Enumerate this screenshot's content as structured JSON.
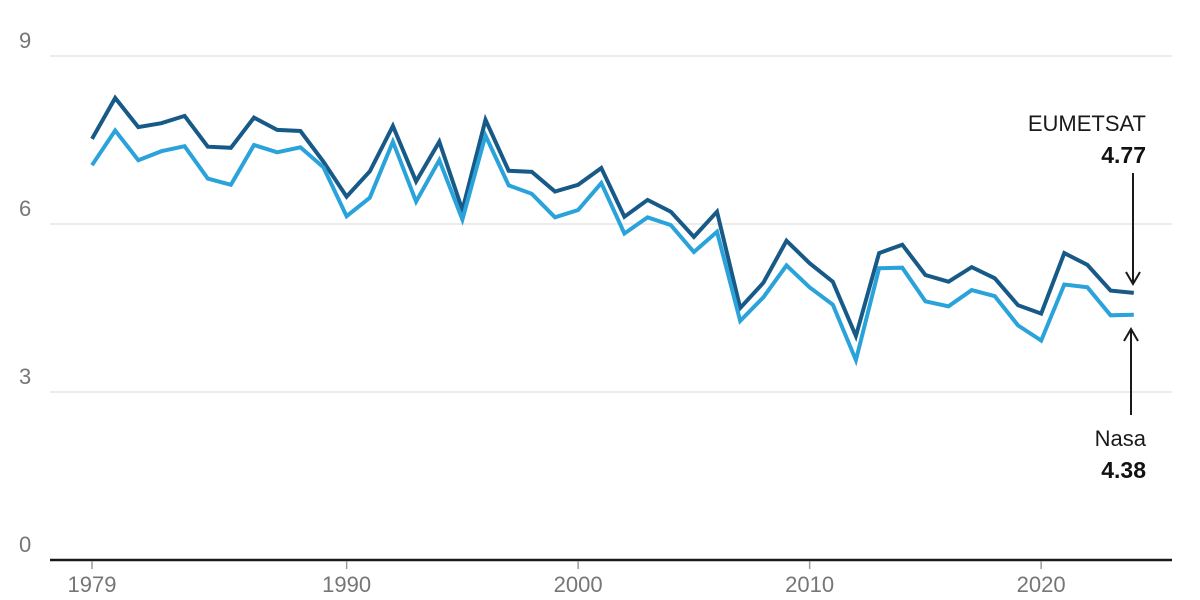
{
  "chart_data": {
    "type": "line",
    "title": "",
    "xlabel": "",
    "ylabel": "",
    "ylim": [
      0,
      9
    ],
    "xlim": [
      1979,
      2024
    ],
    "y_ticks": [
      0,
      3,
      6,
      9
    ],
    "x_ticks": [
      1979,
      1990,
      2000,
      2010,
      2020
    ],
    "grid": "horizontal-only",
    "legend_position": "end-of-line annotations (right side)",
    "x": [
      1979,
      1980,
      1981,
      1982,
      1983,
      1984,
      1985,
      1986,
      1987,
      1988,
      1989,
      1990,
      1991,
      1992,
      1993,
      1994,
      1995,
      1996,
      1997,
      1998,
      1999,
      2000,
      2001,
      2002,
      2003,
      2004,
      2005,
      2006,
      2007,
      2008,
      2009,
      2010,
      2011,
      2012,
      2013,
      2014,
      2015,
      2016,
      2017,
      2018,
      2019,
      2020,
      2021,
      2022,
      2023,
      2024
    ],
    "series": [
      {
        "name": "EUMETSAT",
        "color": "#175a87",
        "values": [
          7.52,
          8.25,
          7.73,
          7.8,
          7.93,
          7.38,
          7.36,
          7.9,
          7.68,
          7.66,
          7.11,
          6.49,
          6.94,
          7.75,
          6.76,
          7.47,
          6.25,
          7.86,
          6.95,
          6.93,
          6.58,
          6.7,
          7.0,
          6.13,
          6.43,
          6.22,
          5.77,
          6.22,
          4.5,
          4.95,
          5.7,
          5.3,
          4.97,
          4.0,
          5.48,
          5.63,
          5.09,
          4.97,
          5.23,
          5.03,
          4.55,
          4.4,
          5.48,
          5.27,
          4.81,
          4.77
        ]
      },
      {
        "name": "Nasa",
        "color": "#2aa3db",
        "values": [
          7.05,
          7.67,
          7.14,
          7.3,
          7.39,
          6.81,
          6.7,
          7.41,
          7.28,
          7.37,
          7.01,
          6.14,
          6.47,
          7.47,
          6.4,
          7.14,
          6.08,
          7.58,
          6.69,
          6.54,
          6.12,
          6.25,
          6.73,
          5.83,
          6.12,
          5.98,
          5.5,
          5.86,
          4.27,
          4.69,
          5.26,
          4.87,
          4.56,
          3.57,
          5.21,
          5.22,
          4.62,
          4.53,
          4.82,
          4.71,
          4.19,
          3.92,
          4.92,
          4.87,
          4.37,
          4.38
        ]
      }
    ],
    "annotations": [
      {
        "series": "EUMETSAT",
        "label": "EUMETSAT",
        "value": "4.77",
        "arrow_direction": "down"
      },
      {
        "series": "Nasa",
        "label": "Nasa",
        "value": "4.38",
        "arrow_direction": "up"
      }
    ]
  },
  "colors": {
    "background": "#ffffff",
    "eumetsat_line": "#175a87",
    "nasa_line": "#2aa3db",
    "gridline": "#d9d9d9",
    "axis_line": "#1a1a1a",
    "tick_label": "#767676",
    "annotation_text": "#1a1a1a"
  }
}
